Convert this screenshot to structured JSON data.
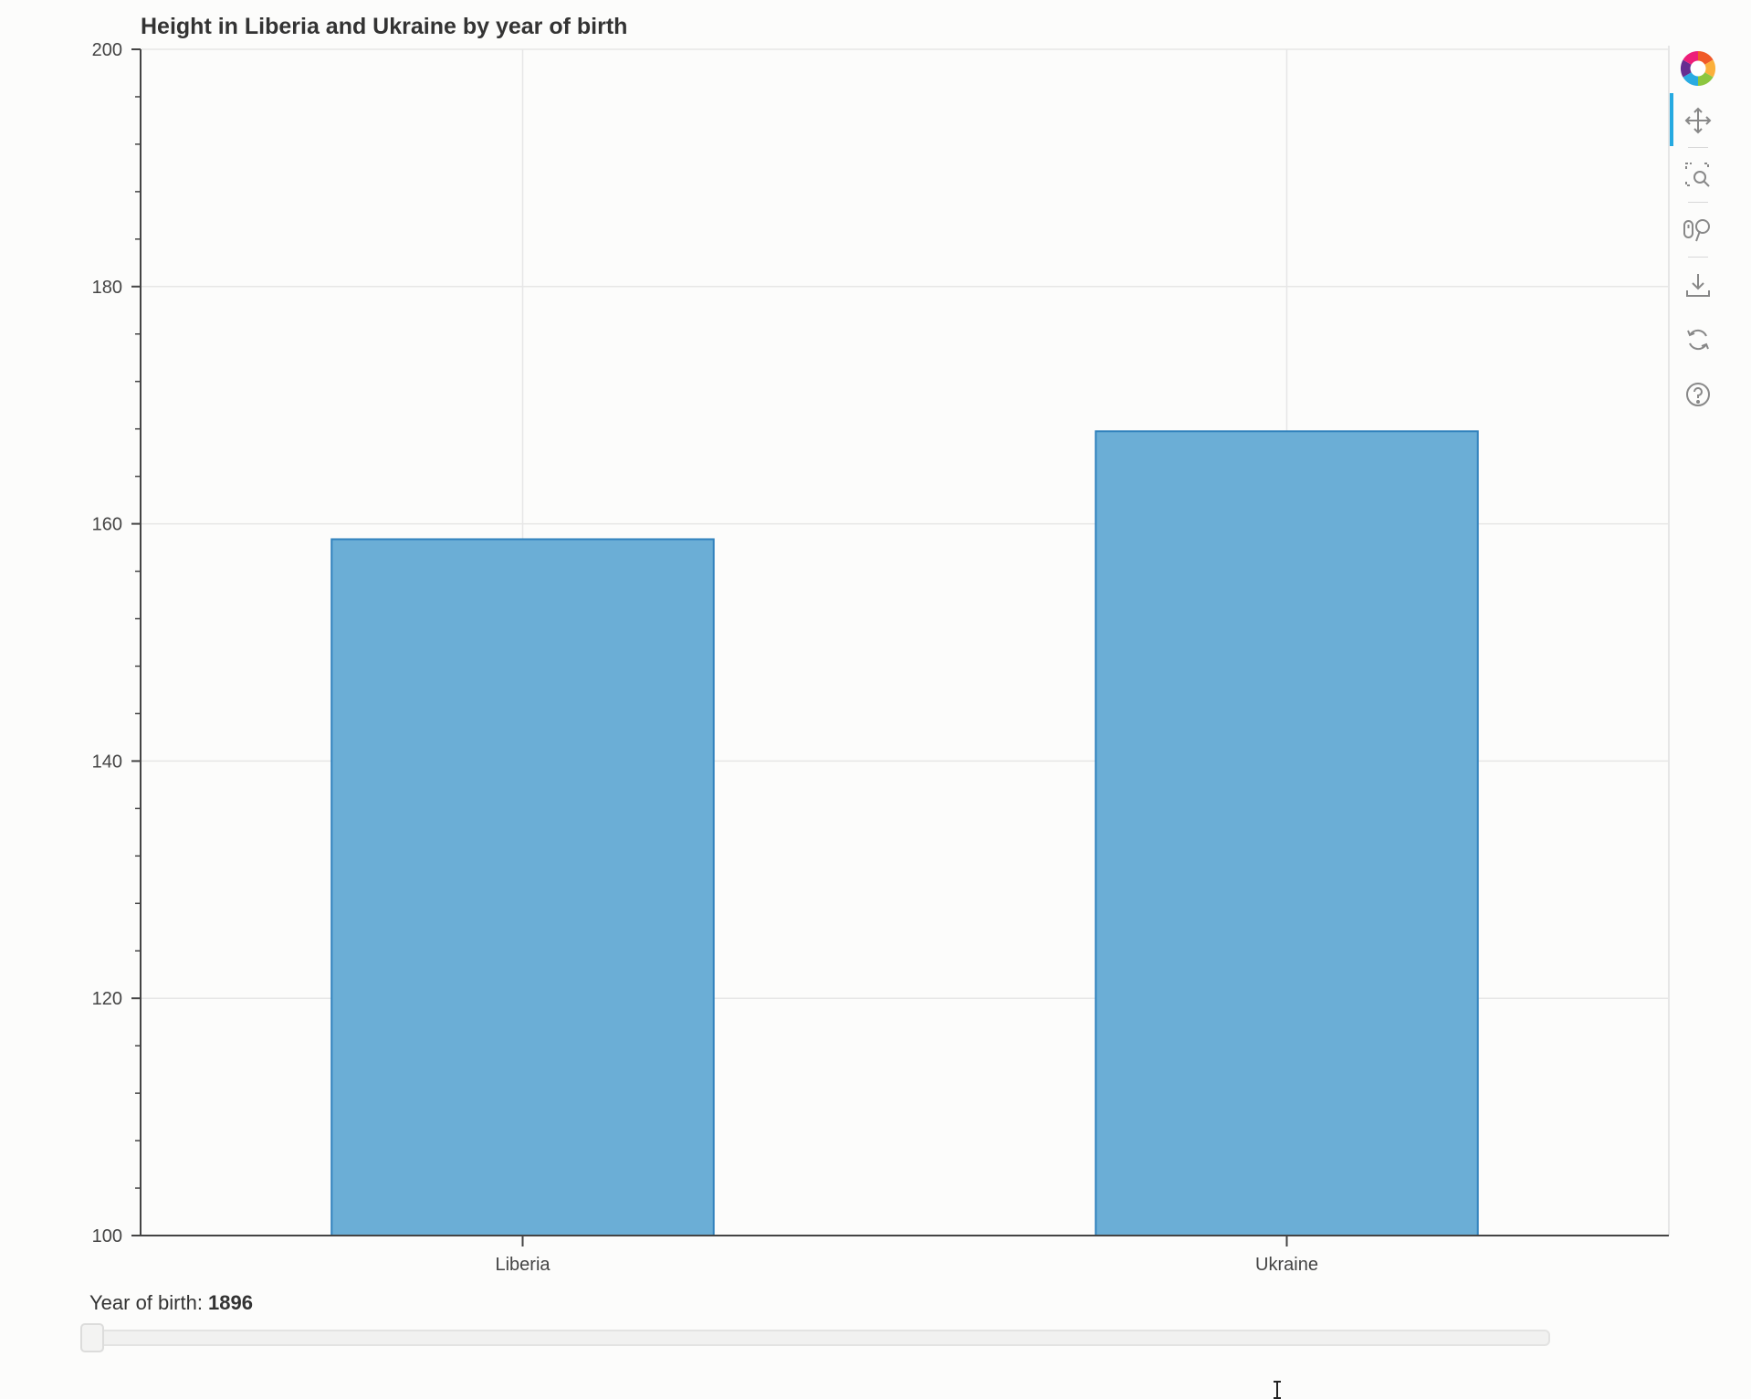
{
  "chart_data": {
    "type": "bar",
    "title": "Height in Liberia and Ukraine by year of birth",
    "categories": [
      "Liberia",
      "Ukraine"
    ],
    "values": [
      158.7,
      167.8
    ],
    "ylim": [
      100,
      200
    ],
    "yticks": [
      "100",
      "120",
      "140",
      "160",
      "180",
      "200"
    ],
    "xlabel": "",
    "ylabel": "",
    "grid": true,
    "colors": {
      "bar_fill": "#6baed6",
      "bar_edge": "#3182bd",
      "axis": "#444444",
      "grid": "#e6e6e6"
    }
  },
  "toolbar": {
    "tools": [
      "bokeh-logo-icon",
      "pan-icon",
      "box-zoom-icon",
      "wheel-zoom-icon",
      "save-icon",
      "reset-icon",
      "help-icon"
    ],
    "active_tool": "pan-icon"
  },
  "slider": {
    "label_prefix": "Year of birth: ",
    "value": "1896",
    "value_fraction": 0.0
  }
}
